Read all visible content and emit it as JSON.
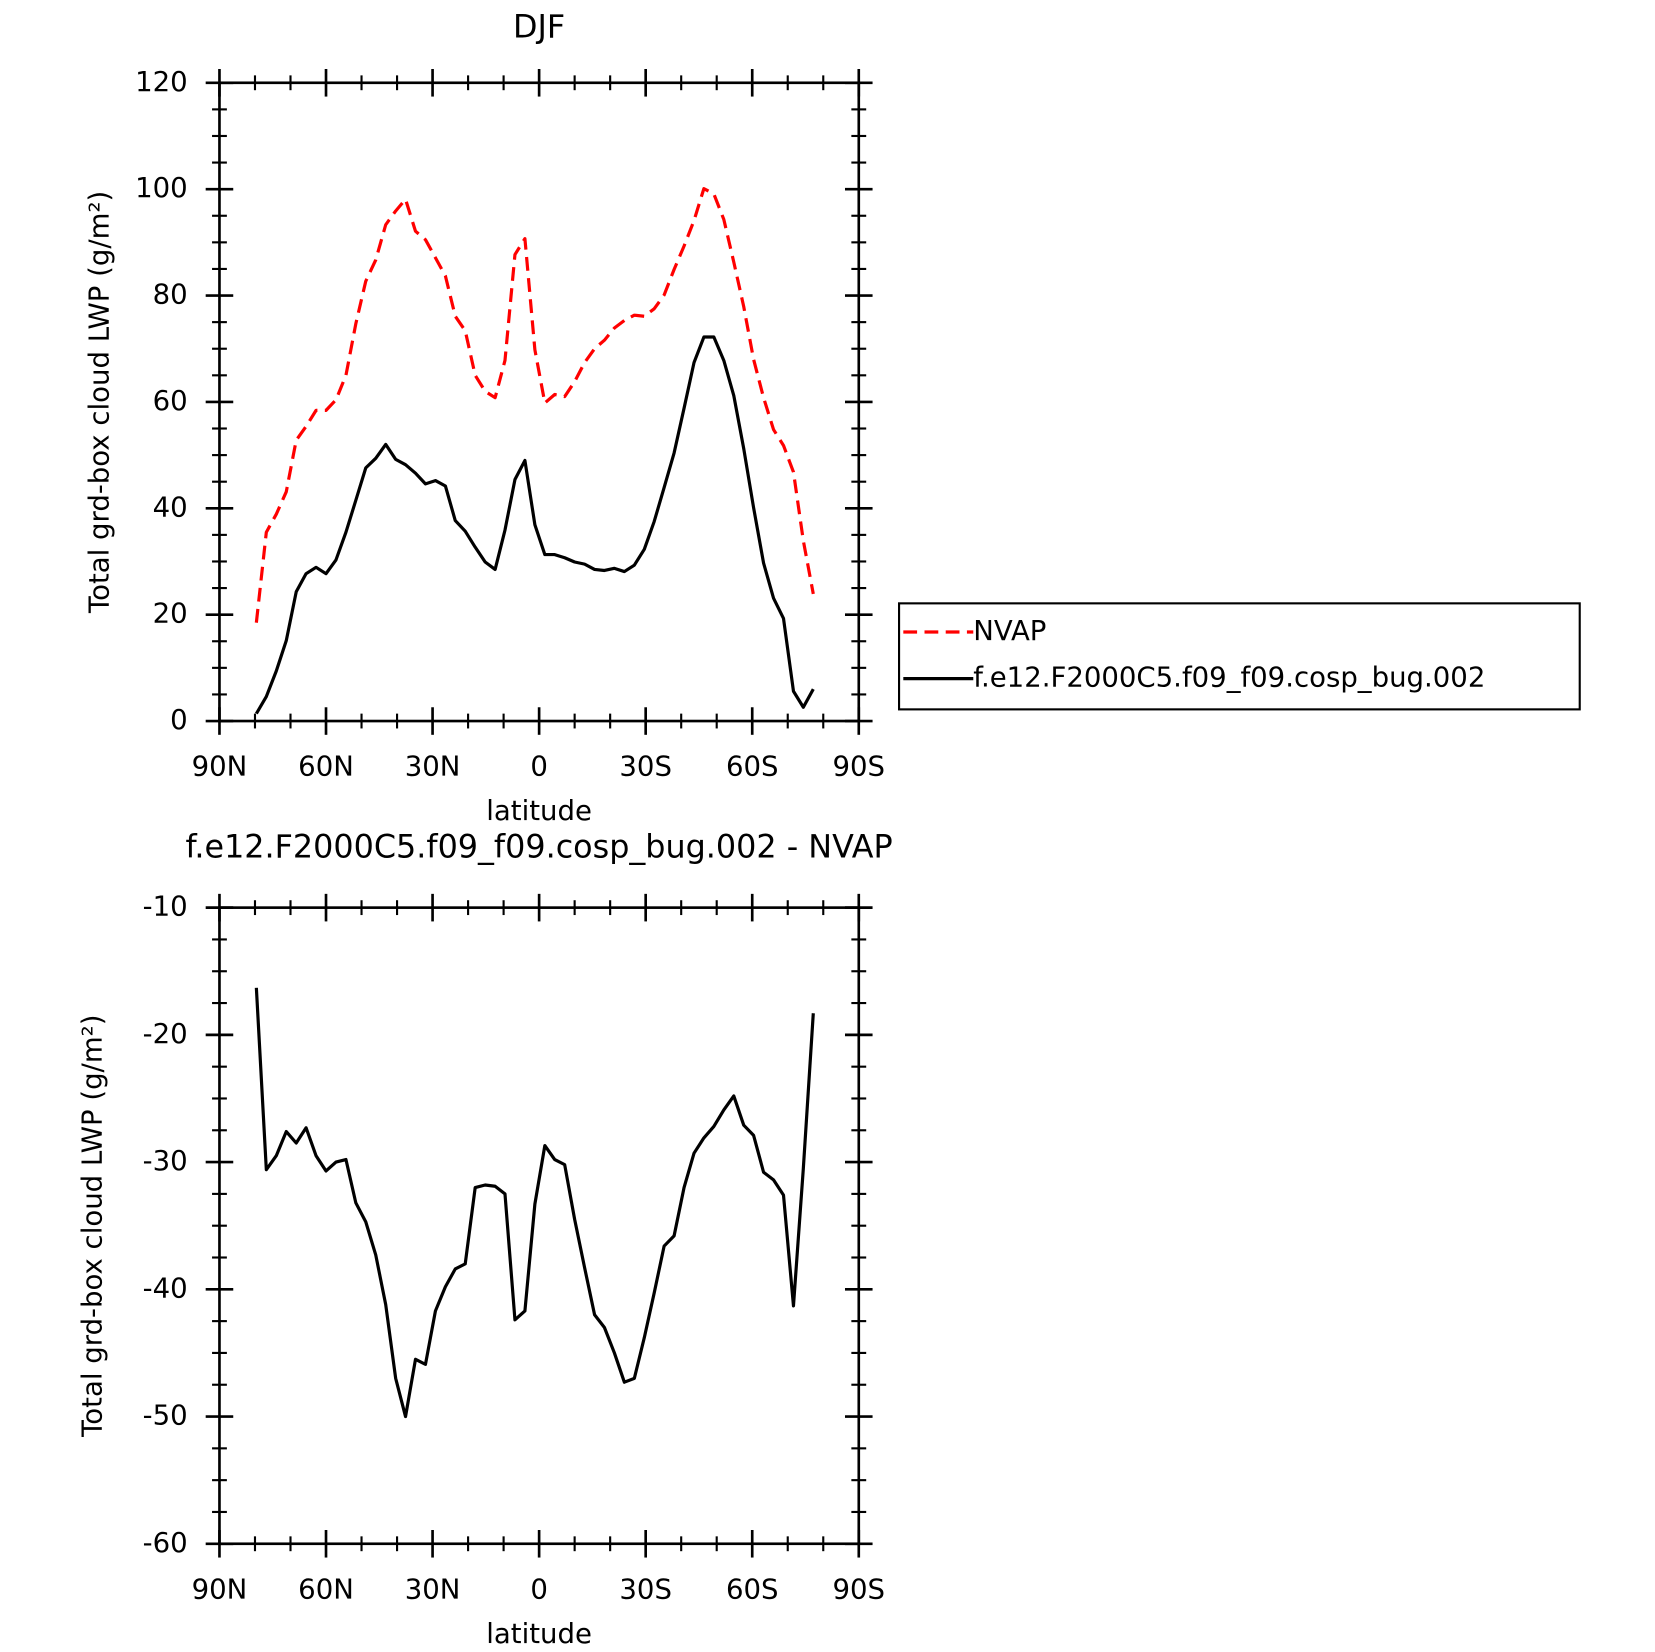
{
  "chart_data": [
    {
      "type": "line",
      "title": "DJF",
      "xlabel": "latitude",
      "ylabel": "Total grd-box cloud LWP (g/m²)",
      "x": [
        79.6,
        76.8,
        74.0,
        71.2,
        68.4,
        65.6,
        62.8,
        60.0,
        57.2,
        54.4,
        51.6,
        48.8,
        46.0,
        43.2,
        40.4,
        37.6,
        34.8,
        32.0,
        29.2,
        26.4,
        23.6,
        20.8,
        18.0,
        15.2,
        12.4,
        9.6,
        6.8,
        4.0,
        1.2,
        -1.6,
        -4.4,
        -7.2,
        -10.0,
        -12.8,
        -15.6,
        -18.4,
        -21.2,
        -24.0,
        -26.8,
        -29.6,
        -32.4,
        -35.2,
        -38.0,
        -40.8,
        -43.6,
        -46.4,
        -49.2,
        -52.0,
        -54.8,
        -57.6,
        -60.4,
        -63.2,
        -66.0,
        -68.8,
        -71.6,
        -74.4,
        -77.2
      ],
      "series": [
        {
          "name": "NVAP",
          "color": "#ff0000",
          "linestyle": "dashed",
          "values": [
            18.5,
            35.5,
            38.9,
            43.1,
            52.8,
            55.4,
            58.4,
            58.4,
            60.4,
            65.0,
            74.7,
            82.7,
            86.7,
            93.3,
            95.9,
            98.1,
            92.1,
            90.5,
            87.1,
            83.7,
            76.1,
            73.4,
            65.0,
            62.0,
            60.8,
            67.8,
            87.7,
            90.7,
            69.8,
            59.8,
            61.4,
            61.0,
            63.8,
            67.4,
            70.0,
            71.6,
            73.9,
            75.3,
            76.3,
            76.1,
            77.5,
            80.1,
            84.9,
            89.3,
            94.1,
            100.1,
            99.1,
            94.3,
            86.3,
            77.9,
            68.0,
            60.8,
            54.8,
            51.8,
            46.8,
            33.9,
            23.9
          ]
        },
        {
          "name": "f.e12.F2000C5.f09_f09.cosp_bug.002",
          "color": "#000000",
          "linestyle": "solid",
          "values": [
            1.4,
            4.6,
            9.4,
            15.1,
            24.3,
            27.7,
            28.9,
            27.7,
            30.3,
            35.5,
            41.5,
            47.6,
            49.4,
            52.0,
            49.2,
            48.2,
            46.6,
            44.6,
            45.2,
            44.2,
            37.7,
            35.7,
            32.7,
            29.9,
            28.5,
            35.9,
            45.4,
            49.0,
            36.9,
            31.3,
            31.3,
            30.7,
            29.9,
            29.5,
            28.5,
            28.3,
            28.7,
            28.1,
            29.3,
            32.3,
            37.5,
            43.9,
            50.4,
            58.8,
            67.4,
            72.2,
            72.2,
            67.8,
            61.2,
            51.2,
            40.1,
            29.7,
            23.1,
            19.3,
            5.6,
            2.6,
            6.0
          ]
        }
      ],
      "xlim": [
        90,
        -90
      ],
      "xticks": [
        {
          "value": 90,
          "label": "90N"
        },
        {
          "value": 60,
          "label": "60N"
        },
        {
          "value": 30,
          "label": "30N"
        },
        0,
        {
          "value": -30,
          "label": "30S"
        },
        {
          "value": -60,
          "label": "60S"
        },
        {
          "value": -90,
          "label": "90S"
        }
      ],
      "ylim": [
        0,
        120
      ],
      "yticks": [
        0,
        20,
        40,
        60,
        80,
        100,
        120
      ],
      "legend_position": "right"
    },
    {
      "type": "line",
      "title": "f.e12.F2000C5.f09_f09.cosp_bug.002 - NVAP",
      "xlabel": "latitude",
      "ylabel": "Total grd-box cloud LWP (g/m²)",
      "x": [
        79.6,
        76.8,
        74.0,
        71.2,
        68.4,
        65.6,
        62.8,
        60.0,
        57.2,
        54.4,
        51.6,
        48.8,
        46.0,
        43.2,
        40.4,
        37.6,
        34.8,
        32.0,
        29.2,
        26.4,
        23.6,
        20.8,
        18.0,
        15.2,
        12.4,
        9.6,
        6.8,
        4.0,
        1.2,
        -1.6,
        -4.4,
        -7.2,
        -10.0,
        -12.8,
        -15.6,
        -18.4,
        -21.2,
        -24.0,
        -26.8,
        -29.6,
        -32.4,
        -35.2,
        -38.0,
        -40.8,
        -43.6,
        -46.4,
        -49.2,
        -52.0,
        -54.8,
        -57.6,
        -60.4,
        -63.2,
        -66.0,
        -68.8,
        -71.6,
        -74.4,
        -77.2
      ],
      "series": [
        {
          "color": "#000000",
          "linestyle": "solid",
          "values": [
            -16.3,
            -30.6,
            -29.5,
            -27.6,
            -28.5,
            -27.3,
            -29.5,
            -30.7,
            -30.0,
            -29.8,
            -33.2,
            -34.7,
            -37.3,
            -41.2,
            -47.0,
            -50.0,
            -45.5,
            -45.9,
            -41.7,
            -39.8,
            -38.4,
            -38.0,
            -32.0,
            -31.8,
            -31.9,
            -32.5,
            -42.4,
            -41.7,
            -33.3,
            -28.7,
            -29.8,
            -30.2,
            -34.5,
            -38.3,
            -42.0,
            -43.0,
            -45.0,
            -47.3,
            -47.0,
            -43.8,
            -40.3,
            -36.6,
            -35.8,
            -32.0,
            -29.3,
            -28.1,
            -27.2,
            -25.9,
            -24.8,
            -27.1,
            -27.9,
            -30.8,
            -31.4,
            -32.6,
            -41.3,
            -30.5,
            -18.3
          ]
        }
      ],
      "xlim": [
        90,
        -90
      ],
      "xticks": [
        {
          "value": 90,
          "label": "90N"
        },
        {
          "value": 60,
          "label": "60N"
        },
        {
          "value": 30,
          "label": "30N"
        },
        0,
        {
          "value": -30,
          "label": "30S"
        },
        {
          "value": -60,
          "label": "60S"
        },
        {
          "value": -90,
          "label": "90S"
        }
      ],
      "ylim": [
        -60,
        -10
      ],
      "yticks": [
        -60,
        -50,
        -40,
        -30,
        -20,
        -10
      ]
    }
  ]
}
